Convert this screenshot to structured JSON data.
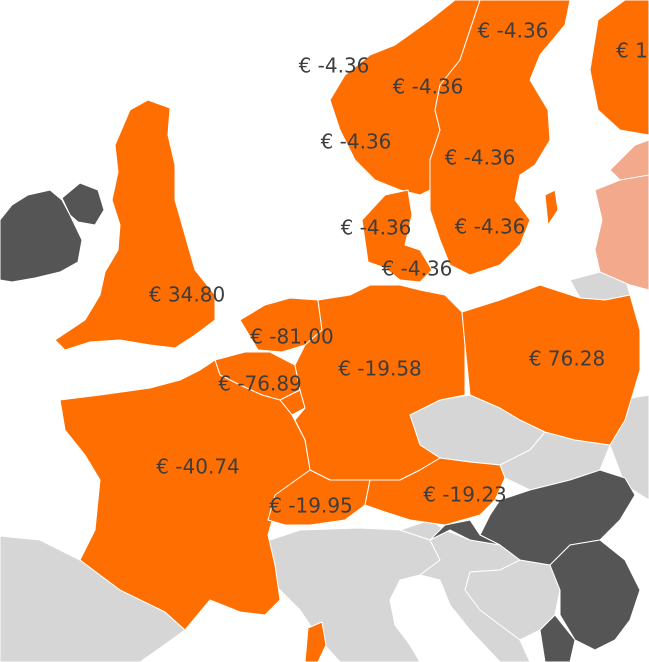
{
  "map": {
    "colors": {
      "sea": "#ffffff",
      "highlight": "#ff6e00",
      "light_highlight": "#f2a98c",
      "neutral": "#d6d6d6",
      "dark": "#555555",
      "label_text": "#3d3d3d",
      "border": "#ffffff"
    },
    "regions": [
      {
        "name": "ireland",
        "fill": "dark"
      },
      {
        "name": "northern-ireland",
        "fill": "dark"
      },
      {
        "name": "great-britain",
        "fill": "highlight"
      },
      {
        "name": "norway",
        "fill": "highlight"
      },
      {
        "name": "sweden",
        "fill": "highlight"
      },
      {
        "name": "finland",
        "fill": "highlight"
      },
      {
        "name": "denmark",
        "fill": "highlight"
      },
      {
        "name": "netherlands",
        "fill": "highlight"
      },
      {
        "name": "belgium",
        "fill": "highlight"
      },
      {
        "name": "luxembourg",
        "fill": "highlight"
      },
      {
        "name": "germany",
        "fill": "highlight"
      },
      {
        "name": "poland",
        "fill": "highlight"
      },
      {
        "name": "france",
        "fill": "highlight"
      },
      {
        "name": "switzerland",
        "fill": "highlight"
      },
      {
        "name": "austria",
        "fill": "highlight"
      },
      {
        "name": "corsica",
        "fill": "highlight"
      },
      {
        "name": "baltics",
        "fill": "light_highlight"
      },
      {
        "name": "estonia",
        "fill": "light_highlight"
      },
      {
        "name": "kaliningrad",
        "fill": "neutral"
      },
      {
        "name": "czechia",
        "fill": "neutral"
      },
      {
        "name": "slovakia",
        "fill": "neutral"
      },
      {
        "name": "spain",
        "fill": "neutral"
      },
      {
        "name": "italy",
        "fill": "neutral"
      },
      {
        "name": "slovenia",
        "fill": "neutral"
      },
      {
        "name": "croatia",
        "fill": "neutral"
      },
      {
        "name": "bosnia",
        "fill": "neutral"
      },
      {
        "name": "ukraine",
        "fill": "neutral"
      },
      {
        "name": "hungary",
        "fill": "dark"
      },
      {
        "name": "serbia",
        "fill": "dark"
      },
      {
        "name": "montenegro",
        "fill": "dark"
      }
    ],
    "labels": [
      {
        "name": "label-sweden-north",
        "text": "€ -4.36"
      },
      {
        "name": "label-finland",
        "text": "€ 1"
      },
      {
        "name": "label-norway-north",
        "text": "€ -4.36"
      },
      {
        "name": "label-norway-central",
        "text": "€ -4.36"
      },
      {
        "name": "label-norway-south",
        "text": "€ -4.36"
      },
      {
        "name": "label-sweden-central",
        "text": "€ -4.36"
      },
      {
        "name": "label-denmark-west",
        "text": "€ -4.36"
      },
      {
        "name": "label-sweden-south",
        "text": "€ -4.36"
      },
      {
        "name": "label-denmark-east",
        "text": "€ -4.36"
      },
      {
        "name": "label-great-britain",
        "text": "€ 34.80"
      },
      {
        "name": "label-netherlands",
        "text": "€ -81.00"
      },
      {
        "name": "label-germany",
        "text": "€ -19.58"
      },
      {
        "name": "label-poland",
        "text": "€ 76.28"
      },
      {
        "name": "label-belgium",
        "text": "€ -76.89"
      },
      {
        "name": "label-france",
        "text": "€ -40.74"
      },
      {
        "name": "label-switzerland",
        "text": "€ -19.95"
      },
      {
        "name": "label-austria",
        "text": "€ -19.23"
      }
    ]
  }
}
